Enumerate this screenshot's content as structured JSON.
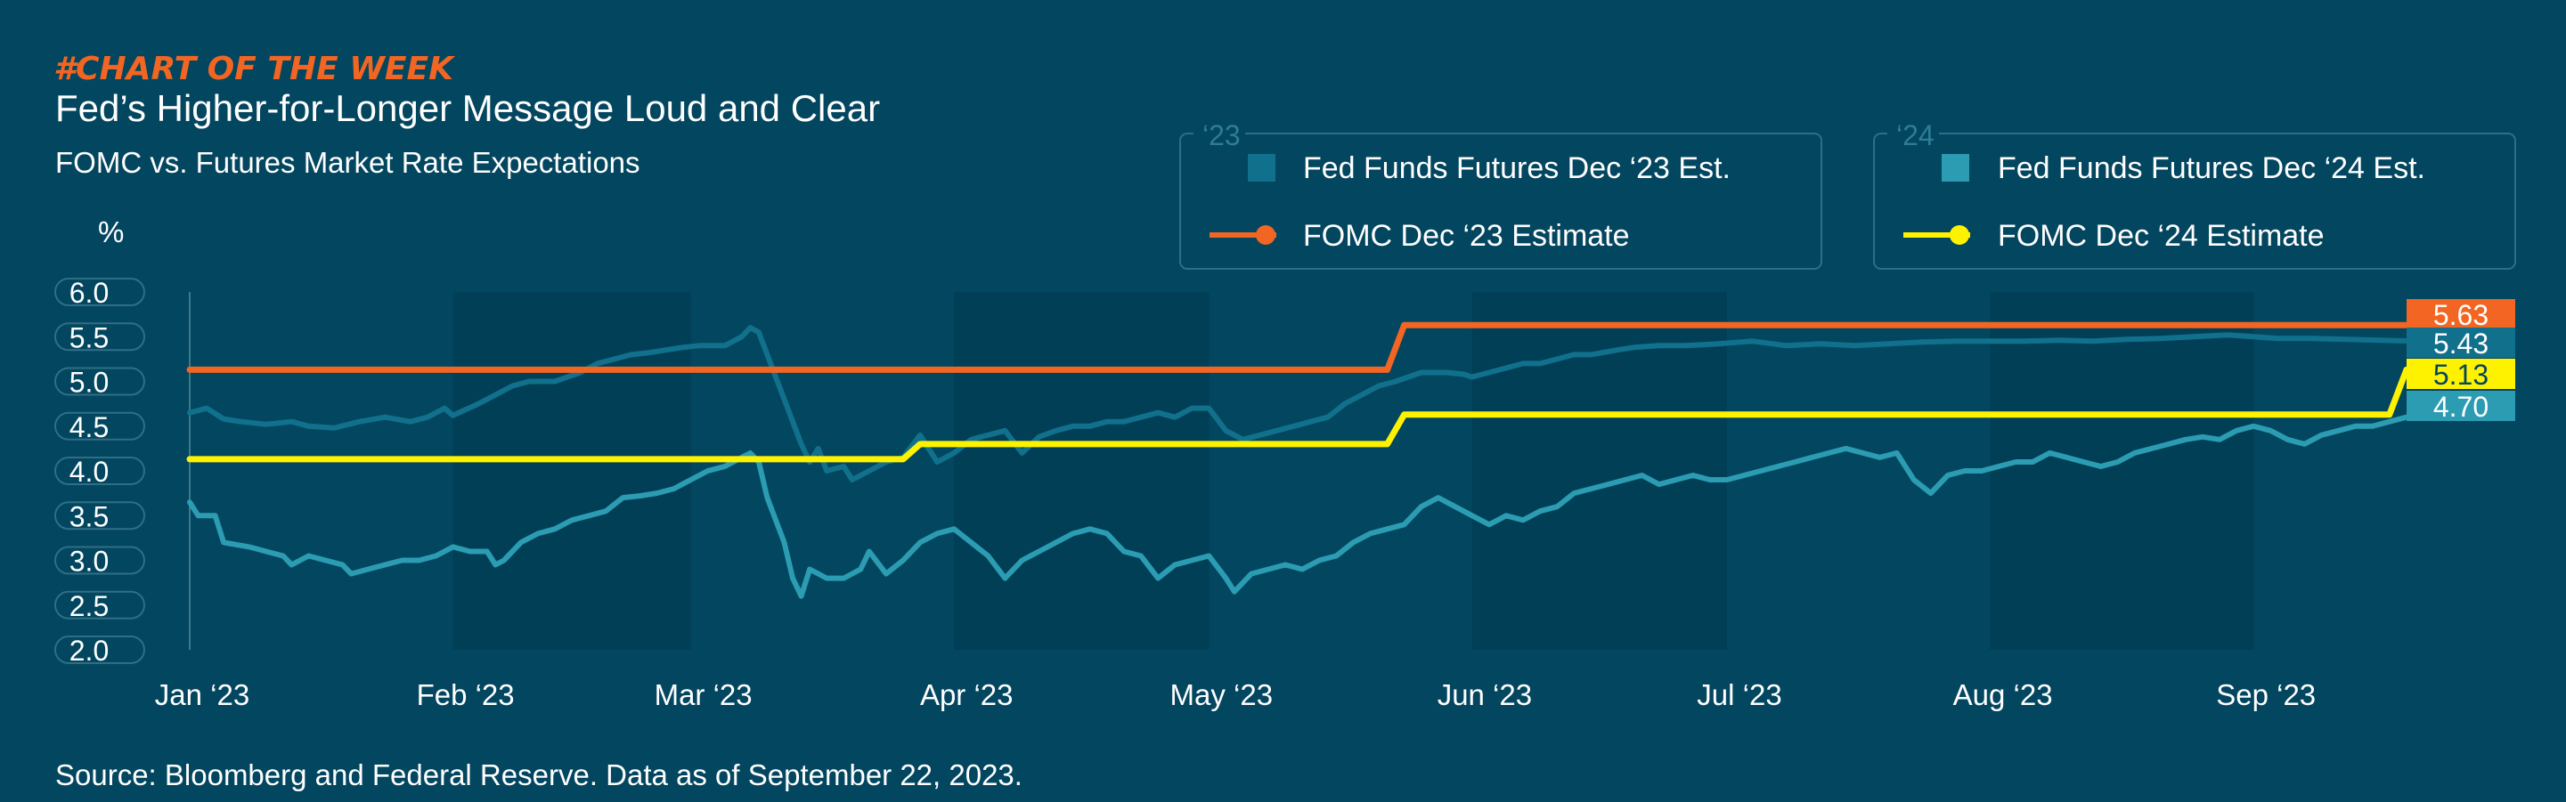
{
  "header": {
    "kicker": "#CHART OF THE WEEK",
    "title": "Fed’s Higher-for-Longer Message Loud and Clear",
    "subtitle": "FOMC vs. Futures Market Rate Expectations"
  },
  "source": "Source: Bloomberg and Federal Reserve. Data as of September 22, 2023.",
  "colors": {
    "background": "#03465f",
    "shade": "#013f56",
    "futures_23": "#11718c",
    "futures_24": "#2b9cb2",
    "fomc_23": "#f26522",
    "fomc_24": "#fff200",
    "label_yellow_text": "#03465f"
  },
  "legends": [
    {
      "group": "‘23",
      "entries": [
        {
          "label": "Fed Funds Futures Dec ‘23 Est.",
          "marker": "square",
          "color": "#11718c"
        },
        {
          "label": "FOMC Dec ‘23 Estimate",
          "marker": "line-dot",
          "color": "#f26522"
        }
      ]
    },
    {
      "group": "‘24",
      "entries": [
        {
          "label": "Fed Funds Futures Dec ‘24 Est.",
          "marker": "square",
          "color": "#2b9cb2"
        },
        {
          "label": "FOMC Dec ‘24 Estimate",
          "marker": "line-dot",
          "color": "#fff200"
        }
      ]
    }
  ],
  "chart_data": {
    "type": "line",
    "ylabel": "%",
    "ylim": [
      2.0,
      6.0
    ],
    "yticks": [
      "6.0",
      "5.5",
      "5.0",
      "4.5",
      "4.0",
      "3.5",
      "3.0",
      "2.5",
      "2.0"
    ],
    "xlim": [
      0,
      265
    ],
    "xticks": [
      {
        "label": "Jan ‘23",
        "day": 0
      },
      {
        "label": "Feb ‘23",
        "day": 31
      },
      {
        "label": "Mar ‘23",
        "day": 59
      },
      {
        "label": "Apr ‘23",
        "day": 90
      },
      {
        "label": "May ‘23",
        "day": 120
      },
      {
        "label": "Jun ‘23",
        "day": 151
      },
      {
        "label": "Jul ‘23",
        "day": 181
      },
      {
        "label": "Aug ‘23",
        "day": 212
      },
      {
        "label": "Sep ‘23",
        "day": 243
      }
    ],
    "shaded_months": [
      [
        31,
        59
      ],
      [
        90,
        120
      ],
      [
        151,
        181
      ],
      [
        212,
        243
      ]
    ],
    "series": [
      {
        "name": "Fed Funds Futures Dec ‘23 Est.",
        "key": "futures_23",
        "color": "#11718c",
        "points": [
          [
            0,
            4.65
          ],
          [
            2,
            4.7
          ],
          [
            4,
            4.58
          ],
          [
            6,
            4.55
          ],
          [
            9,
            4.52
          ],
          [
            12,
            4.55
          ],
          [
            14,
            4.5
          ],
          [
            17,
            4.48
          ],
          [
            20,
            4.55
          ],
          [
            23,
            4.6
          ],
          [
            26,
            4.55
          ],
          [
            28,
            4.6
          ],
          [
            30,
            4.7
          ],
          [
            31,
            4.62
          ],
          [
            34,
            4.75
          ],
          [
            36,
            4.85
          ],
          [
            38,
            4.95
          ],
          [
            40,
            5.0
          ],
          [
            43,
            5.0
          ],
          [
            46,
            5.1
          ],
          [
            48,
            5.2
          ],
          [
            50,
            5.25
          ],
          [
            52,
            5.3
          ],
          [
            54,
            5.32
          ],
          [
            56,
            5.35
          ],
          [
            58,
            5.38
          ],
          [
            60,
            5.4
          ],
          [
            63,
            5.4
          ],
          [
            65,
            5.5
          ],
          [
            66,
            5.6
          ],
          [
            67,
            5.55
          ],
          [
            68,
            5.3
          ],
          [
            70,
            4.8
          ],
          [
            72,
            4.3
          ],
          [
            73,
            4.1
          ],
          [
            74,
            4.25
          ],
          [
            75,
            4.0
          ],
          [
            77,
            4.05
          ],
          [
            78,
            3.9
          ],
          [
            80,
            4.0
          ],
          [
            82,
            4.1
          ],
          [
            84,
            4.15
          ],
          [
            86,
            4.4
          ],
          [
            88,
            4.1
          ],
          [
            90,
            4.2
          ],
          [
            92,
            4.35
          ],
          [
            94,
            4.4
          ],
          [
            96,
            4.45
          ],
          [
            98,
            4.2
          ],
          [
            100,
            4.38
          ],
          [
            102,
            4.45
          ],
          [
            104,
            4.5
          ],
          [
            106,
            4.5
          ],
          [
            108,
            4.55
          ],
          [
            110,
            4.55
          ],
          [
            112,
            4.6
          ],
          [
            114,
            4.65
          ],
          [
            116,
            4.6
          ],
          [
            118,
            4.7
          ],
          [
            120,
            4.7
          ],
          [
            122,
            4.45
          ],
          [
            124,
            4.35
          ],
          [
            126,
            4.4
          ],
          [
            128,
            4.45
          ],
          [
            130,
            4.5
          ],
          [
            132,
            4.55
          ],
          [
            134,
            4.6
          ],
          [
            136,
            4.75
          ],
          [
            138,
            4.85
          ],
          [
            140,
            4.95
          ],
          [
            142,
            5.0
          ],
          [
            145,
            5.1
          ],
          [
            148,
            5.1
          ],
          [
            150,
            5.08
          ],
          [
            151,
            5.05
          ],
          [
            153,
            5.1
          ],
          [
            155,
            5.15
          ],
          [
            157,
            5.2
          ],
          [
            159,
            5.2
          ],
          [
            161,
            5.25
          ],
          [
            163,
            5.3
          ],
          [
            165,
            5.3
          ],
          [
            168,
            5.35
          ],
          [
            170,
            5.38
          ],
          [
            173,
            5.4
          ],
          [
            176,
            5.4
          ],
          [
            180,
            5.42
          ],
          [
            184,
            5.45
          ],
          [
            188,
            5.4
          ],
          [
            192,
            5.42
          ],
          [
            196,
            5.4
          ],
          [
            200,
            5.42
          ],
          [
            204,
            5.44
          ],
          [
            208,
            5.45
          ],
          [
            212,
            5.45
          ],
          [
            216,
            5.45
          ],
          [
            220,
            5.46
          ],
          [
            224,
            5.45
          ],
          [
            228,
            5.47
          ],
          [
            232,
            5.48
          ],
          [
            236,
            5.5
          ],
          [
            240,
            5.52
          ],
          [
            243,
            5.5
          ],
          [
            246,
            5.48
          ],
          [
            250,
            5.48
          ],
          [
            254,
            5.47
          ],
          [
            258,
            5.46
          ],
          [
            262,
            5.45
          ],
          [
            265,
            5.43
          ]
        ]
      },
      {
        "name": "Fed Funds Futures Dec ‘24 Est.",
        "key": "futures_24",
        "color": "#2b9cb2",
        "points": [
          [
            0,
            3.65
          ],
          [
            1,
            3.5
          ],
          [
            3,
            3.5
          ],
          [
            4,
            3.2
          ],
          [
            7,
            3.15
          ],
          [
            9,
            3.1
          ],
          [
            11,
            3.05
          ],
          [
            12,
            2.95
          ],
          [
            14,
            3.05
          ],
          [
            16,
            3.0
          ],
          [
            18,
            2.95
          ],
          [
            19,
            2.85
          ],
          [
            21,
            2.9
          ],
          [
            23,
            2.95
          ],
          [
            25,
            3.0
          ],
          [
            27,
            3.0
          ],
          [
            29,
            3.05
          ],
          [
            31,
            3.15
          ],
          [
            33,
            3.1
          ],
          [
            35,
            3.1
          ],
          [
            36,
            2.95
          ],
          [
            37,
            3.0
          ],
          [
            39,
            3.2
          ],
          [
            41,
            3.3
          ],
          [
            43,
            3.35
          ],
          [
            45,
            3.45
          ],
          [
            47,
            3.5
          ],
          [
            49,
            3.55
          ],
          [
            51,
            3.7
          ],
          [
            53,
            3.72
          ],
          [
            55,
            3.75
          ],
          [
            57,
            3.8
          ],
          [
            59,
            3.9
          ],
          [
            61,
            4.0
          ],
          [
            63,
            4.05
          ],
          [
            65,
            4.15
          ],
          [
            66,
            4.2
          ],
          [
            67,
            4.1
          ],
          [
            68,
            3.7
          ],
          [
            70,
            3.2
          ],
          [
            71,
            2.8
          ],
          [
            72,
            2.6
          ],
          [
            73,
            2.9
          ],
          [
            75,
            2.8
          ],
          [
            77,
            2.8
          ],
          [
            79,
            2.9
          ],
          [
            80,
            3.1
          ],
          [
            82,
            2.85
          ],
          [
            84,
            3.0
          ],
          [
            86,
            3.2
          ],
          [
            88,
            3.3
          ],
          [
            90,
            3.35
          ],
          [
            92,
            3.2
          ],
          [
            94,
            3.05
          ],
          [
            96,
            2.8
          ],
          [
            98,
            3.0
          ],
          [
            100,
            3.1
          ],
          [
            102,
            3.2
          ],
          [
            104,
            3.3
          ],
          [
            106,
            3.35
          ],
          [
            108,
            3.3
          ],
          [
            110,
            3.1
          ],
          [
            112,
            3.05
          ],
          [
            114,
            2.8
          ],
          [
            116,
            2.95
          ],
          [
            118,
            3.0
          ],
          [
            120,
            3.05
          ],
          [
            122,
            2.8
          ],
          [
            123,
            2.65
          ],
          [
            125,
            2.85
          ],
          [
            127,
            2.9
          ],
          [
            129,
            2.95
          ],
          [
            131,
            2.9
          ],
          [
            133,
            3.0
          ],
          [
            135,
            3.05
          ],
          [
            137,
            3.2
          ],
          [
            139,
            3.3
          ],
          [
            141,
            3.35
          ],
          [
            143,
            3.4
          ],
          [
            145,
            3.6
          ],
          [
            147,
            3.7
          ],
          [
            149,
            3.6
          ],
          [
            151,
            3.5
          ],
          [
            153,
            3.4
          ],
          [
            155,
            3.5
          ],
          [
            157,
            3.45
          ],
          [
            159,
            3.55
          ],
          [
            161,
            3.6
          ],
          [
            163,
            3.75
          ],
          [
            165,
            3.8
          ],
          [
            167,
            3.85
          ],
          [
            169,
            3.9
          ],
          [
            171,
            3.95
          ],
          [
            173,
            3.85
          ],
          [
            175,
            3.9
          ],
          [
            177,
            3.95
          ],
          [
            179,
            3.9
          ],
          [
            181,
            3.9
          ],
          [
            183,
            3.95
          ],
          [
            185,
            4.0
          ],
          [
            187,
            4.05
          ],
          [
            189,
            4.1
          ],
          [
            191,
            4.15
          ],
          [
            193,
            4.2
          ],
          [
            195,
            4.25
          ],
          [
            197,
            4.2
          ],
          [
            199,
            4.15
          ],
          [
            201,
            4.2
          ],
          [
            203,
            3.9
          ],
          [
            205,
            3.75
          ],
          [
            207,
            3.95
          ],
          [
            209,
            4.0
          ],
          [
            211,
            4.0
          ],
          [
            213,
            4.05
          ],
          [
            215,
            4.1
          ],
          [
            217,
            4.1
          ],
          [
            219,
            4.2
          ],
          [
            221,
            4.15
          ],
          [
            223,
            4.1
          ],
          [
            225,
            4.05
          ],
          [
            227,
            4.1
          ],
          [
            229,
            4.2
          ],
          [
            231,
            4.25
          ],
          [
            233,
            4.3
          ],
          [
            235,
            4.35
          ],
          [
            237,
            4.38
          ],
          [
            239,
            4.35
          ],
          [
            241,
            4.45
          ],
          [
            243,
            4.5
          ],
          [
            245,
            4.45
          ],
          [
            247,
            4.35
          ],
          [
            249,
            4.3
          ],
          [
            251,
            4.4
          ],
          [
            253,
            4.45
          ],
          [
            255,
            4.5
          ],
          [
            257,
            4.5
          ],
          [
            259,
            4.55
          ],
          [
            261,
            4.6
          ],
          [
            263,
            4.65
          ],
          [
            265,
            4.7
          ]
        ]
      },
      {
        "name": "FOMC Dec ‘23 Estimate",
        "key": "fomc_23",
        "color": "#f26522",
        "points": [
          [
            0,
            5.13
          ],
          [
            141,
            5.13
          ],
          [
            143,
            5.63
          ],
          [
            265,
            5.63
          ]
        ]
      },
      {
        "name": "FOMC Dec ‘24 Estimate",
        "key": "fomc_24",
        "color": "#fff200",
        "points": [
          [
            0,
            4.13
          ],
          [
            68,
            4.13
          ],
          [
            69,
            4.13
          ],
          [
            84,
            4.13
          ],
          [
            86,
            4.3
          ],
          [
            141,
            4.3
          ],
          [
            143,
            4.63
          ],
          [
            259,
            4.63
          ],
          [
            261,
            5.13
          ],
          [
            265,
            5.13
          ]
        ]
      }
    ],
    "end_labels": [
      {
        "text": "5.63",
        "series": "fomc_23",
        "value": 5.63
      },
      {
        "text": "5.43",
        "series": "futures_23",
        "value": 5.43
      },
      {
        "text": "5.13",
        "series": "fomc_24",
        "value": 5.13
      },
      {
        "text": "4.70",
        "series": "futures_24",
        "value": 4.7
      }
    ]
  }
}
